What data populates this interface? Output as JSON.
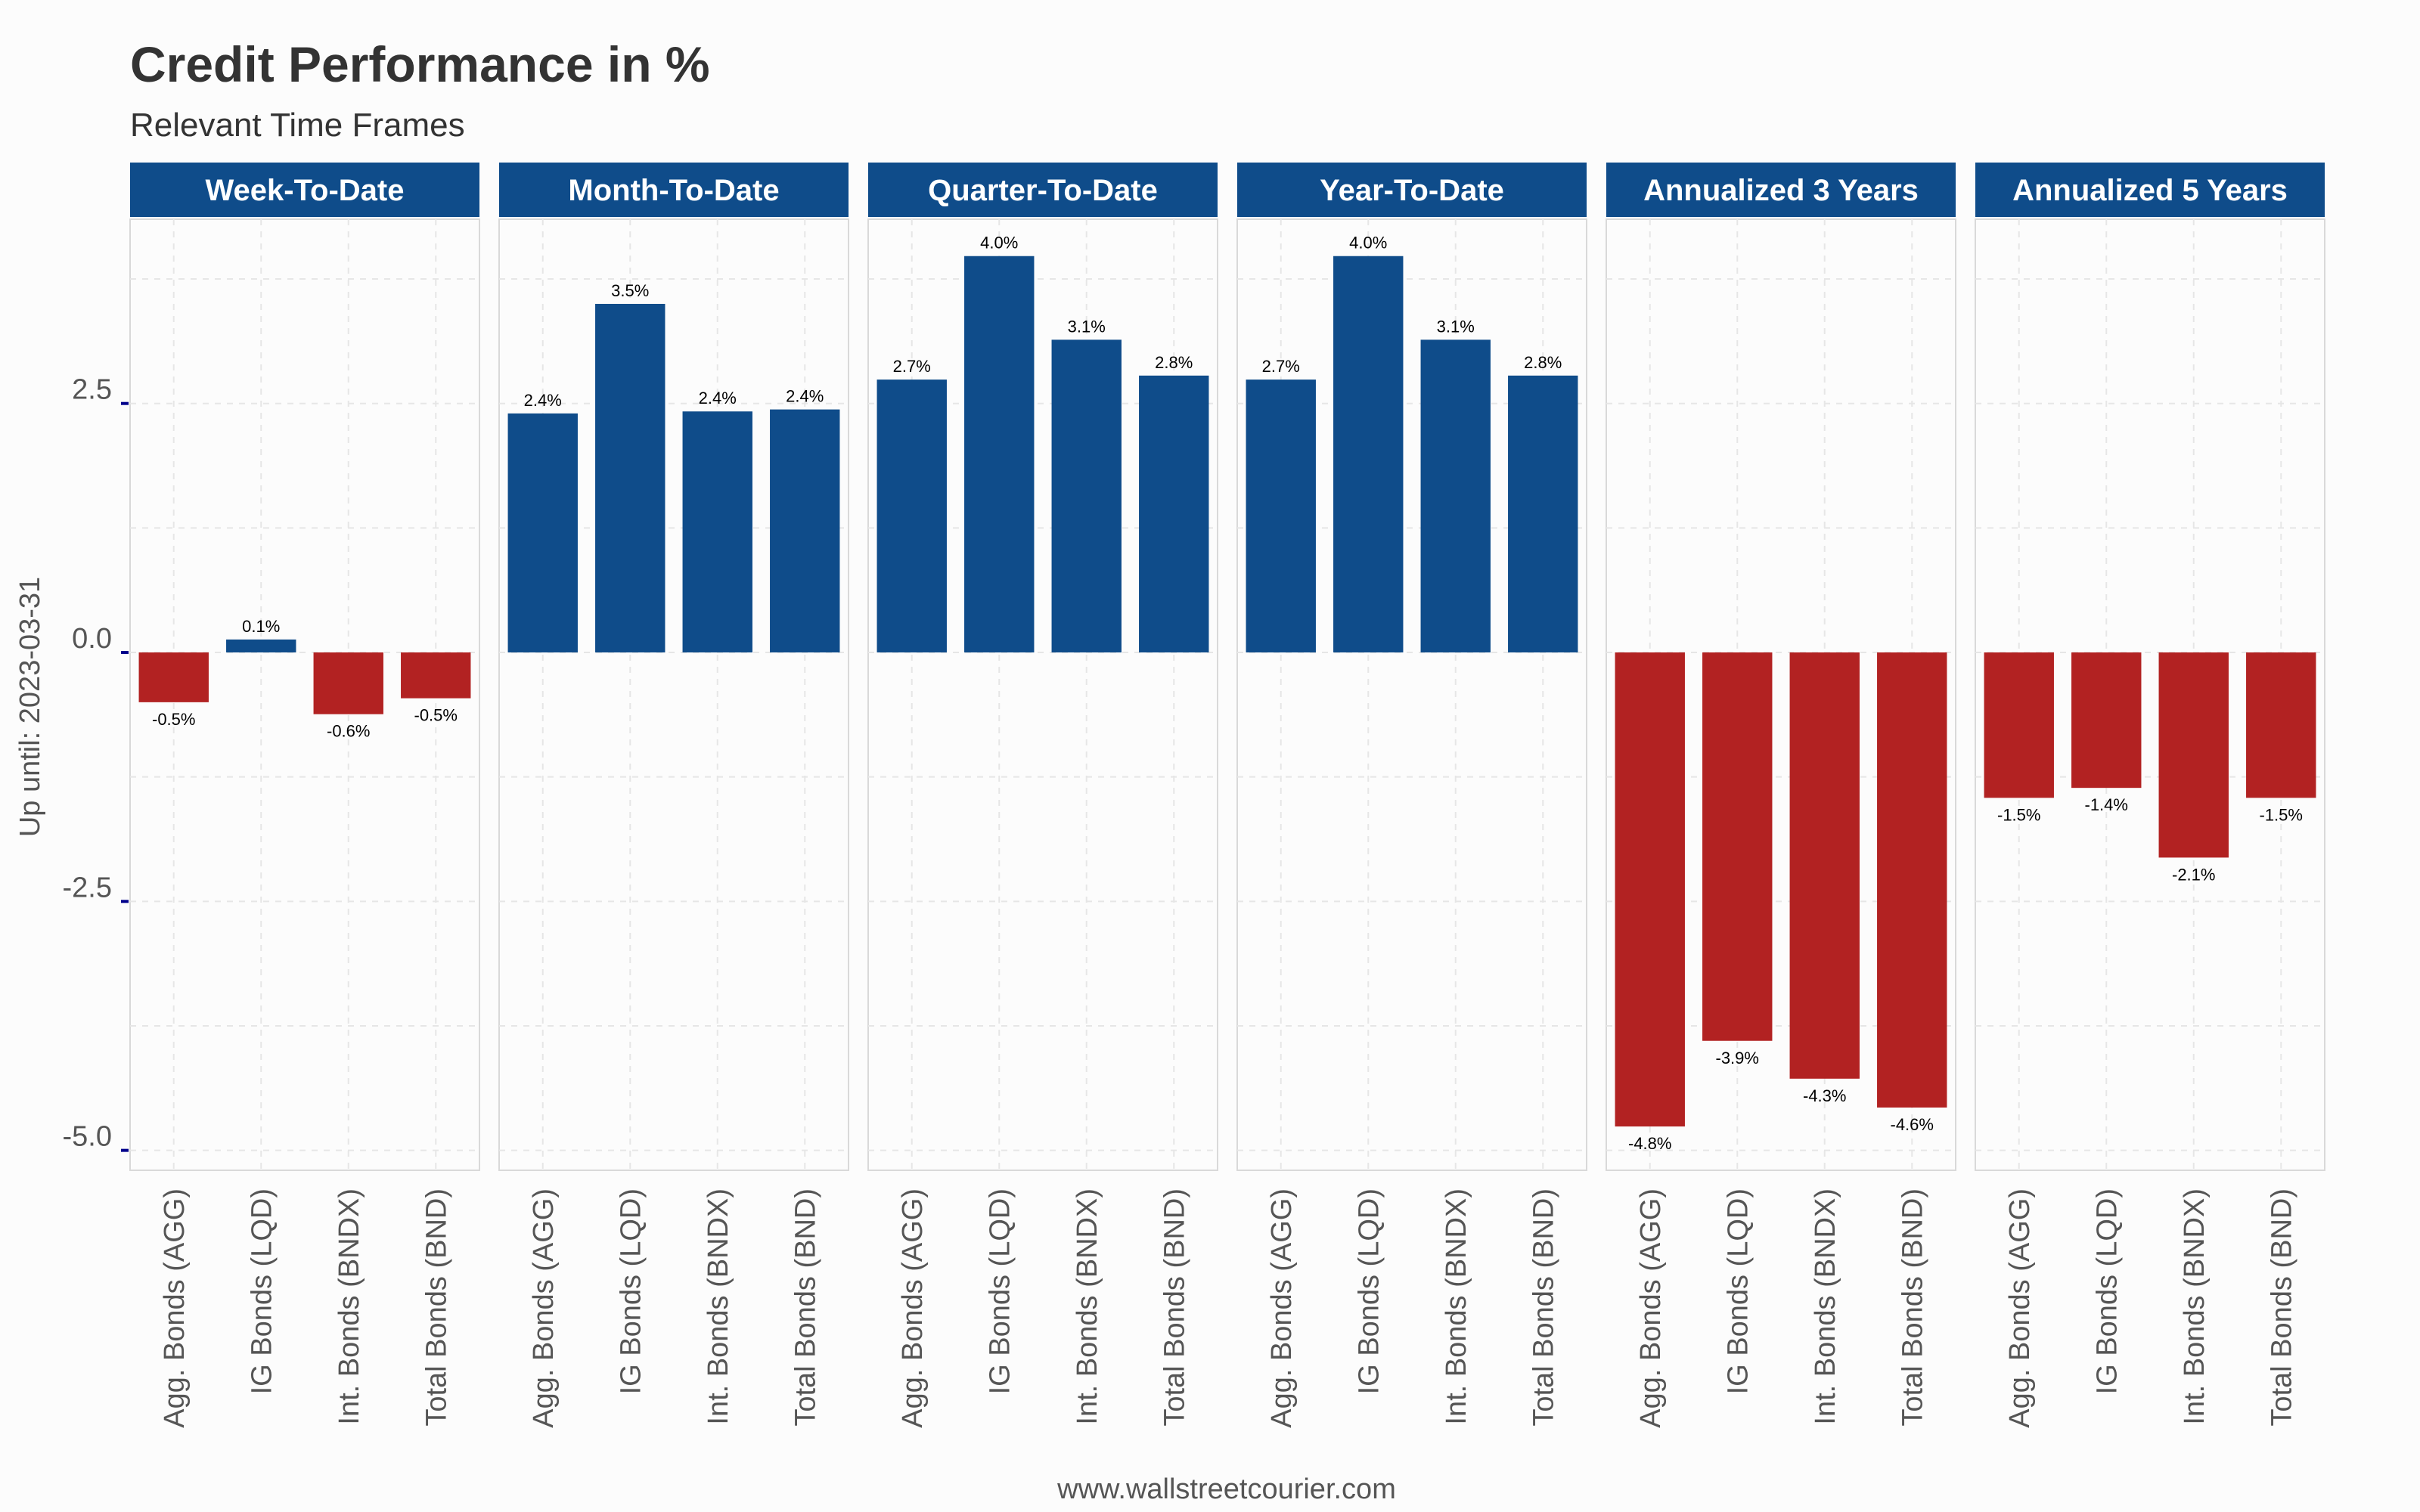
{
  "chart_data": {
    "type": "bar",
    "title": "Credit Performance in %",
    "subtitle": "Relevant Time Frames",
    "ylabel": "Up until: 2023-03-31",
    "caption": "www.wallstreetcourier.com",
    "ylim": [
      -5.2,
      4.35
    ],
    "y_ticks": [
      2.5,
      0.0,
      -2.5,
      -5.0
    ],
    "y_tick_labels": [
      "2.5",
      "0.0",
      "-2.5",
      "-5.0"
    ],
    "grid": true,
    "legend": "none",
    "colors": {
      "positive": "#0f4c8a",
      "negative": "#b22222",
      "strip": "#0f4c8a"
    },
    "categories": [
      "Agg. Bonds (AGG)",
      "IG Bonds (LQD)",
      "Int. Bonds (BNDX)",
      "Total Bonds (BND)"
    ],
    "panels": [
      {
        "title": "Week-To-Date",
        "values": [
          -0.5,
          0.13,
          -0.62,
          -0.46
        ],
        "labels": [
          "-0.5%",
          "0.1%",
          "-0.6%",
          "-0.5%"
        ]
      },
      {
        "title": "Month-To-Date",
        "values": [
          2.4,
          3.5,
          2.42,
          2.44
        ],
        "labels": [
          "2.4%",
          "3.5%",
          "2.4%",
          "2.4%"
        ]
      },
      {
        "title": "Quarter-To-Date",
        "values": [
          2.74,
          3.98,
          3.14,
          2.78
        ],
        "labels": [
          "2.7%",
          "4.0%",
          "3.1%",
          "2.8%"
        ]
      },
      {
        "title": "Year-To-Date",
        "values": [
          2.74,
          3.98,
          3.14,
          2.78
        ],
        "labels": [
          "2.7%",
          "4.0%",
          "3.1%",
          "2.8%"
        ]
      },
      {
        "title": "Annualized 3 Years",
        "values": [
          -4.76,
          -3.9,
          -4.28,
          -4.57
        ],
        "labels": [
          "-4.8%",
          "-3.9%",
          "-4.3%",
          "-4.6%"
        ]
      },
      {
        "title": "Annualized 5 Years",
        "values": [
          -1.46,
          -1.36,
          -2.06,
          -1.46
        ],
        "labels": [
          "-1.5%",
          "-1.4%",
          "-2.1%",
          "-1.5%"
        ]
      }
    ]
  }
}
